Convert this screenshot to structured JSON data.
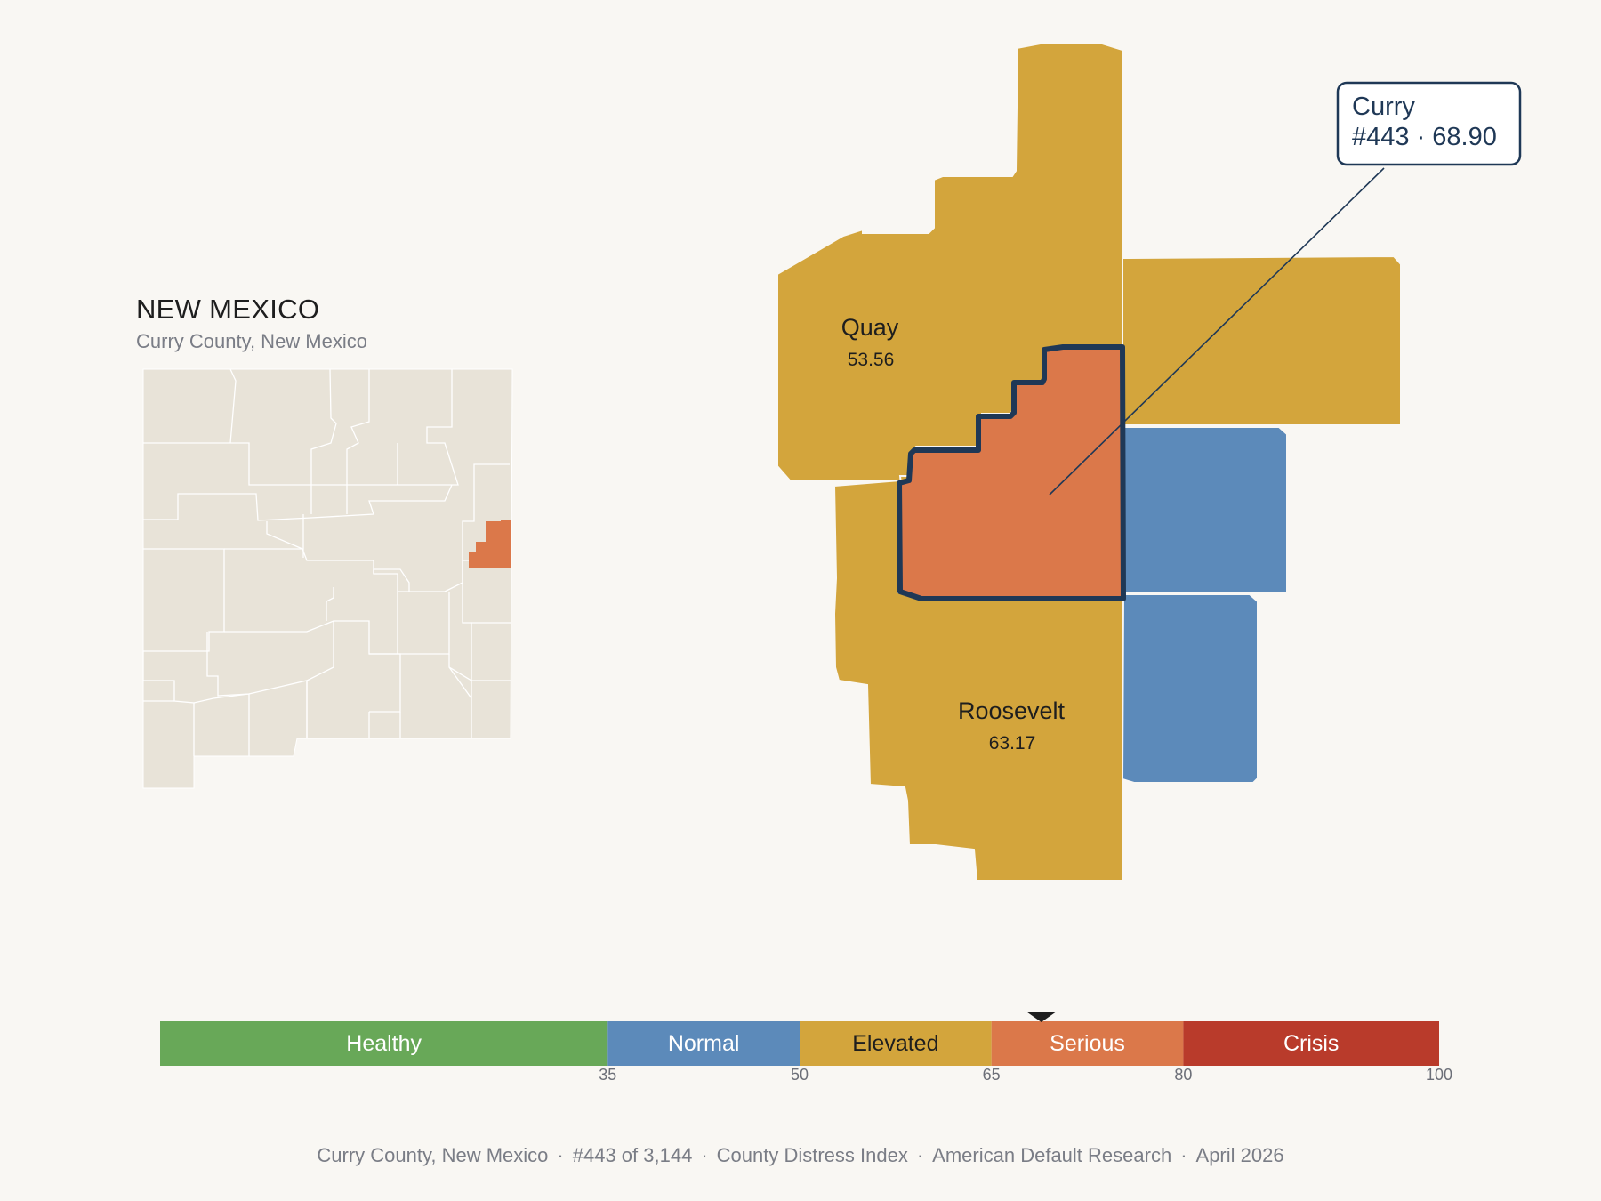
{
  "state": {
    "title": "NEW MEXICO",
    "subtitle": "Curry County, New Mexico"
  },
  "focus_county": {
    "name": "Curry",
    "rank_score": "#443 · 68.90",
    "fill": "#db784a",
    "outline": "#1f3856"
  },
  "neighbors": [
    {
      "name": "Quay",
      "score": "53.56",
      "fill": "#d3a53c"
    },
    {
      "name": "Roosevelt",
      "score": "63.17",
      "fill": "#d3a53c"
    }
  ],
  "colors": {
    "elevated": "#d3a53c",
    "normal": "#5c8aba",
    "serious": "#db784a",
    "inset_county": "#e8e3d8",
    "background": "#f9f7f3"
  },
  "legend": {
    "bands": [
      {
        "label": "Healthy",
        "from": 0,
        "to": 35,
        "color": "#68a858",
        "text_color": "#ffffff"
      },
      {
        "label": "Normal",
        "from": 35,
        "to": 50,
        "color": "#5c8aba",
        "text_color": "#ffffff"
      },
      {
        "label": "Elevated",
        "from": 50,
        "to": 65,
        "color": "#d3a53c",
        "text_color": "#1e1e1e"
      },
      {
        "label": "Serious",
        "from": 65,
        "to": 80,
        "color": "#db784a",
        "text_color": "#ffffff"
      },
      {
        "label": "Crisis",
        "from": 80,
        "to": 100,
        "color": "#b93b2b",
        "text_color": "#ffffff"
      }
    ],
    "ticks": [
      "35",
      "50",
      "65",
      "80",
      "100"
    ],
    "marker_value": 68.9
  },
  "footer": {
    "parts": [
      "Curry County, New Mexico",
      "#443 of 3,144",
      "County Distress Index",
      "American Default Research",
      "April 2026"
    ],
    "separator": "·"
  }
}
